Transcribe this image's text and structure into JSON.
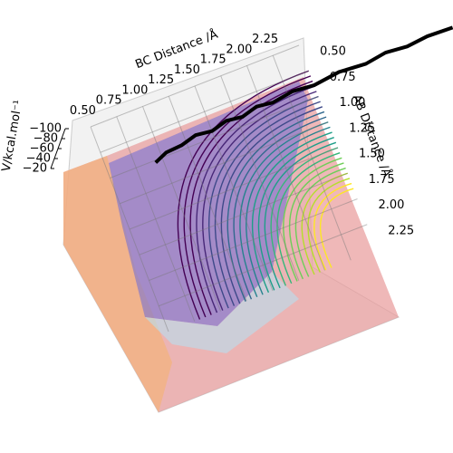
{
  "chart_data": {
    "type": "surface3d",
    "xlabel": "BC Distance /Å",
    "ylabel": "AB Distance /Å",
    "zlabel": "V/kcal.mol⁻¹",
    "xlim": [
      0.5,
      2.5
    ],
    "ylim": [
      0.5,
      2.5
    ],
    "zlim": [
      -100,
      -20
    ],
    "xticks": [
      {
        "value": 0.5,
        "label": "0.50"
      },
      0.75,
      {
        "value": 1.0,
        "label": "1.00"
      },
      1.25,
      {
        "value": 1.5,
        "label": "1.50"
      },
      1.75,
      {
        "value": 2.0,
        "label": "2.00"
      },
      2.25
    ],
    "yticks": [
      {
        "value": 0.5,
        "label": "0.50"
      },
      0.75,
      {
        "value": 1.0,
        "label": "1.00"
      },
      1.25,
      {
        "value": 1.5,
        "label": "1.50"
      },
      1.75,
      {
        "value": 2.0,
        "label": "2.00"
      },
      2.25
    ],
    "zticks": [
      {
        "value": -100,
        "label": "−100"
      },
      {
        "value": -80,
        "label": "−80"
      },
      {
        "value": -60,
        "label": "−60"
      },
      {
        "value": -40,
        "label": "−40"
      },
      {
        "value": -20,
        "label": "−20"
      }
    ],
    "trajectory": {
      "color": "#000000",
      "x": [
        0.93,
        1.05,
        1.2,
        1.35,
        1.5,
        1.65,
        1.8,
        1.95,
        2.1,
        2.3,
        2.5,
        2.75,
        3.0,
        3.2,
        3.4,
        3.6,
        3.84
      ],
      "y": [
        1.02,
        0.97,
        0.96,
        0.92,
        0.94,
        0.9,
        0.92,
        0.88,
        0.9,
        0.87,
        0.89,
        0.86,
        0.88,
        0.85,
        0.87,
        0.85,
        0.86
      ]
    }
  }
}
